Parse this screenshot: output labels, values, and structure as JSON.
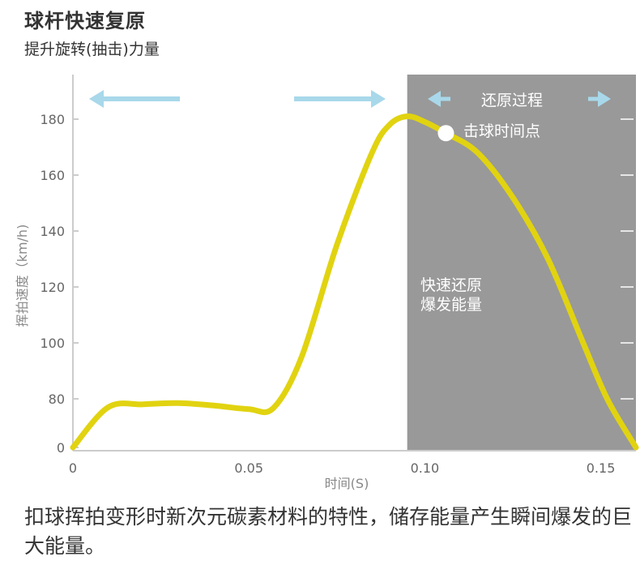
{
  "header": {
    "title": "球杆快速复原",
    "subtitle": "提升旋转(抽击)力量"
  },
  "caption": "扣球挥拍变形时新次元碳素材料的特性，储存能量产生瞬间爆发的巨大能量。",
  "colors": {
    "curve": "#e1d310",
    "shaded_region": "#999999",
    "arrow_light_blue": "#a8d8ea",
    "impact_point": "#ffffff"
  },
  "chart_data": {
    "type": "line",
    "xlabel": "时间(S)",
    "ylabel": "挥拍速度（km/h)",
    "x_ticks": [
      "0",
      "0.05",
      "0.10",
      "0.15"
    ],
    "y_ticks": [
      "0",
      "80",
      "100",
      "120",
      "140",
      "160",
      "180"
    ],
    "xlim": [
      0,
      0.16
    ],
    "y_axis_note": "axis break between 0 and 80",
    "grid": false,
    "shaded_region": {
      "x_start": 0.095,
      "x_end": 0.16,
      "label": "快速还原爆发能量"
    },
    "annotations": {
      "recovery_process": "还原过程",
      "impact_point": "击球时间点",
      "fast_recovery_line1": "快速还原",
      "fast_recovery_line2": "爆发能量"
    },
    "impact_point": {
      "x": 0.106,
      "y": 175
    },
    "series": [
      {
        "values": [
          [
            0.0,
            0
          ],
          [
            0.01,
            66
          ],
          [
            0.02,
            71
          ],
          [
            0.03,
            73
          ],
          [
            0.04,
            69
          ],
          [
            0.05,
            63
          ],
          [
            0.057,
            65
          ],
          [
            0.065,
            95
          ],
          [
            0.075,
            135
          ],
          [
            0.085,
            168
          ],
          [
            0.09,
            178
          ],
          [
            0.095,
            181
          ],
          [
            0.1,
            179
          ],
          [
            0.106,
            175
          ],
          [
            0.115,
            168
          ],
          [
            0.125,
            152
          ],
          [
            0.135,
            130
          ],
          [
            0.145,
            100
          ],
          [
            0.152,
            78
          ],
          [
            0.16,
            0
          ]
        ]
      }
    ]
  }
}
